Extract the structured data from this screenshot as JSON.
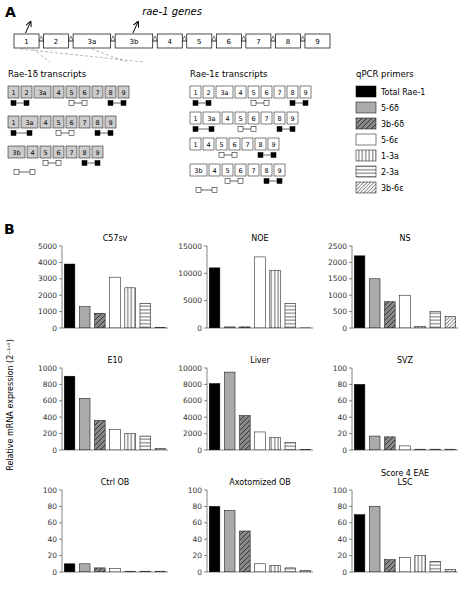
{
  "chart_data": [
    {
      "type": "diagram",
      "title": "rae-1 genes",
      "annotations": [
        "A",
        "Rae-1δ transcripts",
        "Rae-1ε transcripts",
        "qPCR primers",
        "B",
        "Relative mRNA expression (2⁻ᴸᶜᵗ)"
      ],
      "categories": [
        "1",
        "2",
        "3a",
        "3b",
        "4",
        "5",
        "6",
        "7",
        "8",
        "9"
      ],
      "series": [
        {
          "name": "Total Rae-1",
          "color": "black"
        },
        {
          "name": "5-6δ",
          "color": "#aaaaaa"
        },
        {
          "name": "3b-6δ",
          "color": "#888888"
        },
        {
          "name": "5-6ε",
          "color": "white"
        },
        {
          "name": "1-3a",
          "color": "white"
        },
        {
          "name": "2-3a",
          "color": "white"
        },
        {
          "name": "3b-6ε",
          "color": "white"
        }
      ]
    },
    {
      "type": "bar",
      "title": "C57sv",
      "ylim": [
        0,
        5000
      ],
      "yticks": [
        0,
        1000,
        2000,
        3000,
        4000,
        5000
      ],
      "values": [
        3900,
        1300,
        900,
        3100,
        2450,
        1500,
        40
      ],
      "colors": [
        "black",
        "#aaaaaa",
        "#888888",
        "white",
        "white",
        "white",
        "white"
      ],
      "tick_labels": "y"
    },
    {
      "type": "bar",
      "title": "NOE",
      "ylim": [
        0,
        15000
      ],
      "yticks": [
        0,
        5000,
        10000,
        15000
      ],
      "values": [
        11000,
        200,
        200,
        13000,
        10500,
        4500,
        20
      ],
      "colors": [
        "black",
        "#aaaaaa",
        "#888888",
        "white",
        "white",
        "white",
        "white"
      ],
      "tick_labels": "y"
    },
    {
      "type": "bar",
      "title": "NS",
      "ylim": [
        0,
        2500
      ],
      "yticks": [
        0,
        500,
        1000,
        1500,
        2000,
        2500
      ],
      "values": [
        2200,
        1500,
        800,
        1000,
        50,
        500,
        350
      ],
      "colors": [
        "black",
        "#aaaaaa",
        "#888888",
        "white",
        "white",
        "white",
        "white"
      ],
      "tick_labels": "y"
    },
    {
      "type": "bar",
      "title": "E10",
      "ylim": [
        0,
        1000
      ],
      "yticks": [
        0,
        200,
        400,
        600,
        800,
        1000
      ],
      "values": [
        900,
        630,
        360,
        250,
        200,
        170,
        20
      ],
      "colors": [
        "black",
        "#aaaaaa",
        "#888888",
        "white",
        "white",
        "white",
        "white"
      ],
      "tick_labels": "y"
    },
    {
      "type": "bar",
      "title": "Liver",
      "ylim": [
        0,
        10000
      ],
      "yticks": [
        0,
        2000,
        4000,
        6000,
        8000,
        10000
      ],
      "values": [
        8100,
        9500,
        4200,
        2200,
        1500,
        900,
        50
      ],
      "colors": [
        "black",
        "#aaaaaa",
        "#888888",
        "white",
        "white",
        "white",
        "white"
      ],
      "tick_labels": "y"
    },
    {
      "type": "bar",
      "title": "SVZ",
      "ylim": [
        0,
        100
      ],
      "yticks": [
        0,
        20,
        40,
        60,
        80,
        100
      ],
      "values": [
        80,
        17,
        16,
        5,
        1,
        1,
        1
      ],
      "colors": [
        "black",
        "#aaaaaa",
        "#888888",
        "white",
        "white",
        "white",
        "white"
      ],
      "tick_labels": "y"
    },
    {
      "type": "bar",
      "title": "Ctrl OB",
      "ylim": [
        0,
        100
      ],
      "yticks": [
        0,
        20,
        40,
        60,
        80,
        100
      ],
      "values": [
        10,
        10,
        5,
        4,
        1,
        1,
        1
      ],
      "colors": [
        "black",
        "#aaaaaa",
        "#888888",
        "white",
        "white",
        "white",
        "white"
      ],
      "tick_labels": "y"
    },
    {
      "type": "bar",
      "title": "Axotomized OB",
      "ylim": [
        0,
        100
      ],
      "yticks": [
        0,
        20,
        40,
        60,
        80,
        100
      ],
      "values": [
        80,
        75,
        50,
        10,
        8,
        5,
        2
      ],
      "colors": [
        "black",
        "#aaaaaa",
        "#888888",
        "white",
        "white",
        "white",
        "white"
      ],
      "tick_labels": "y"
    },
    {
      "type": "bar",
      "title": "Score 4 EAE\nLSC",
      "ylim": [
        0,
        100
      ],
      "yticks": [
        0,
        20,
        40,
        60,
        80,
        100
      ],
      "values": [
        70,
        80,
        15,
        18,
        20,
        13,
        3
      ],
      "colors": [
        "black",
        "#aaaaaa",
        "#888888",
        "white",
        "white",
        "white",
        "white"
      ],
      "tick_labels": "y"
    }
  ]
}
